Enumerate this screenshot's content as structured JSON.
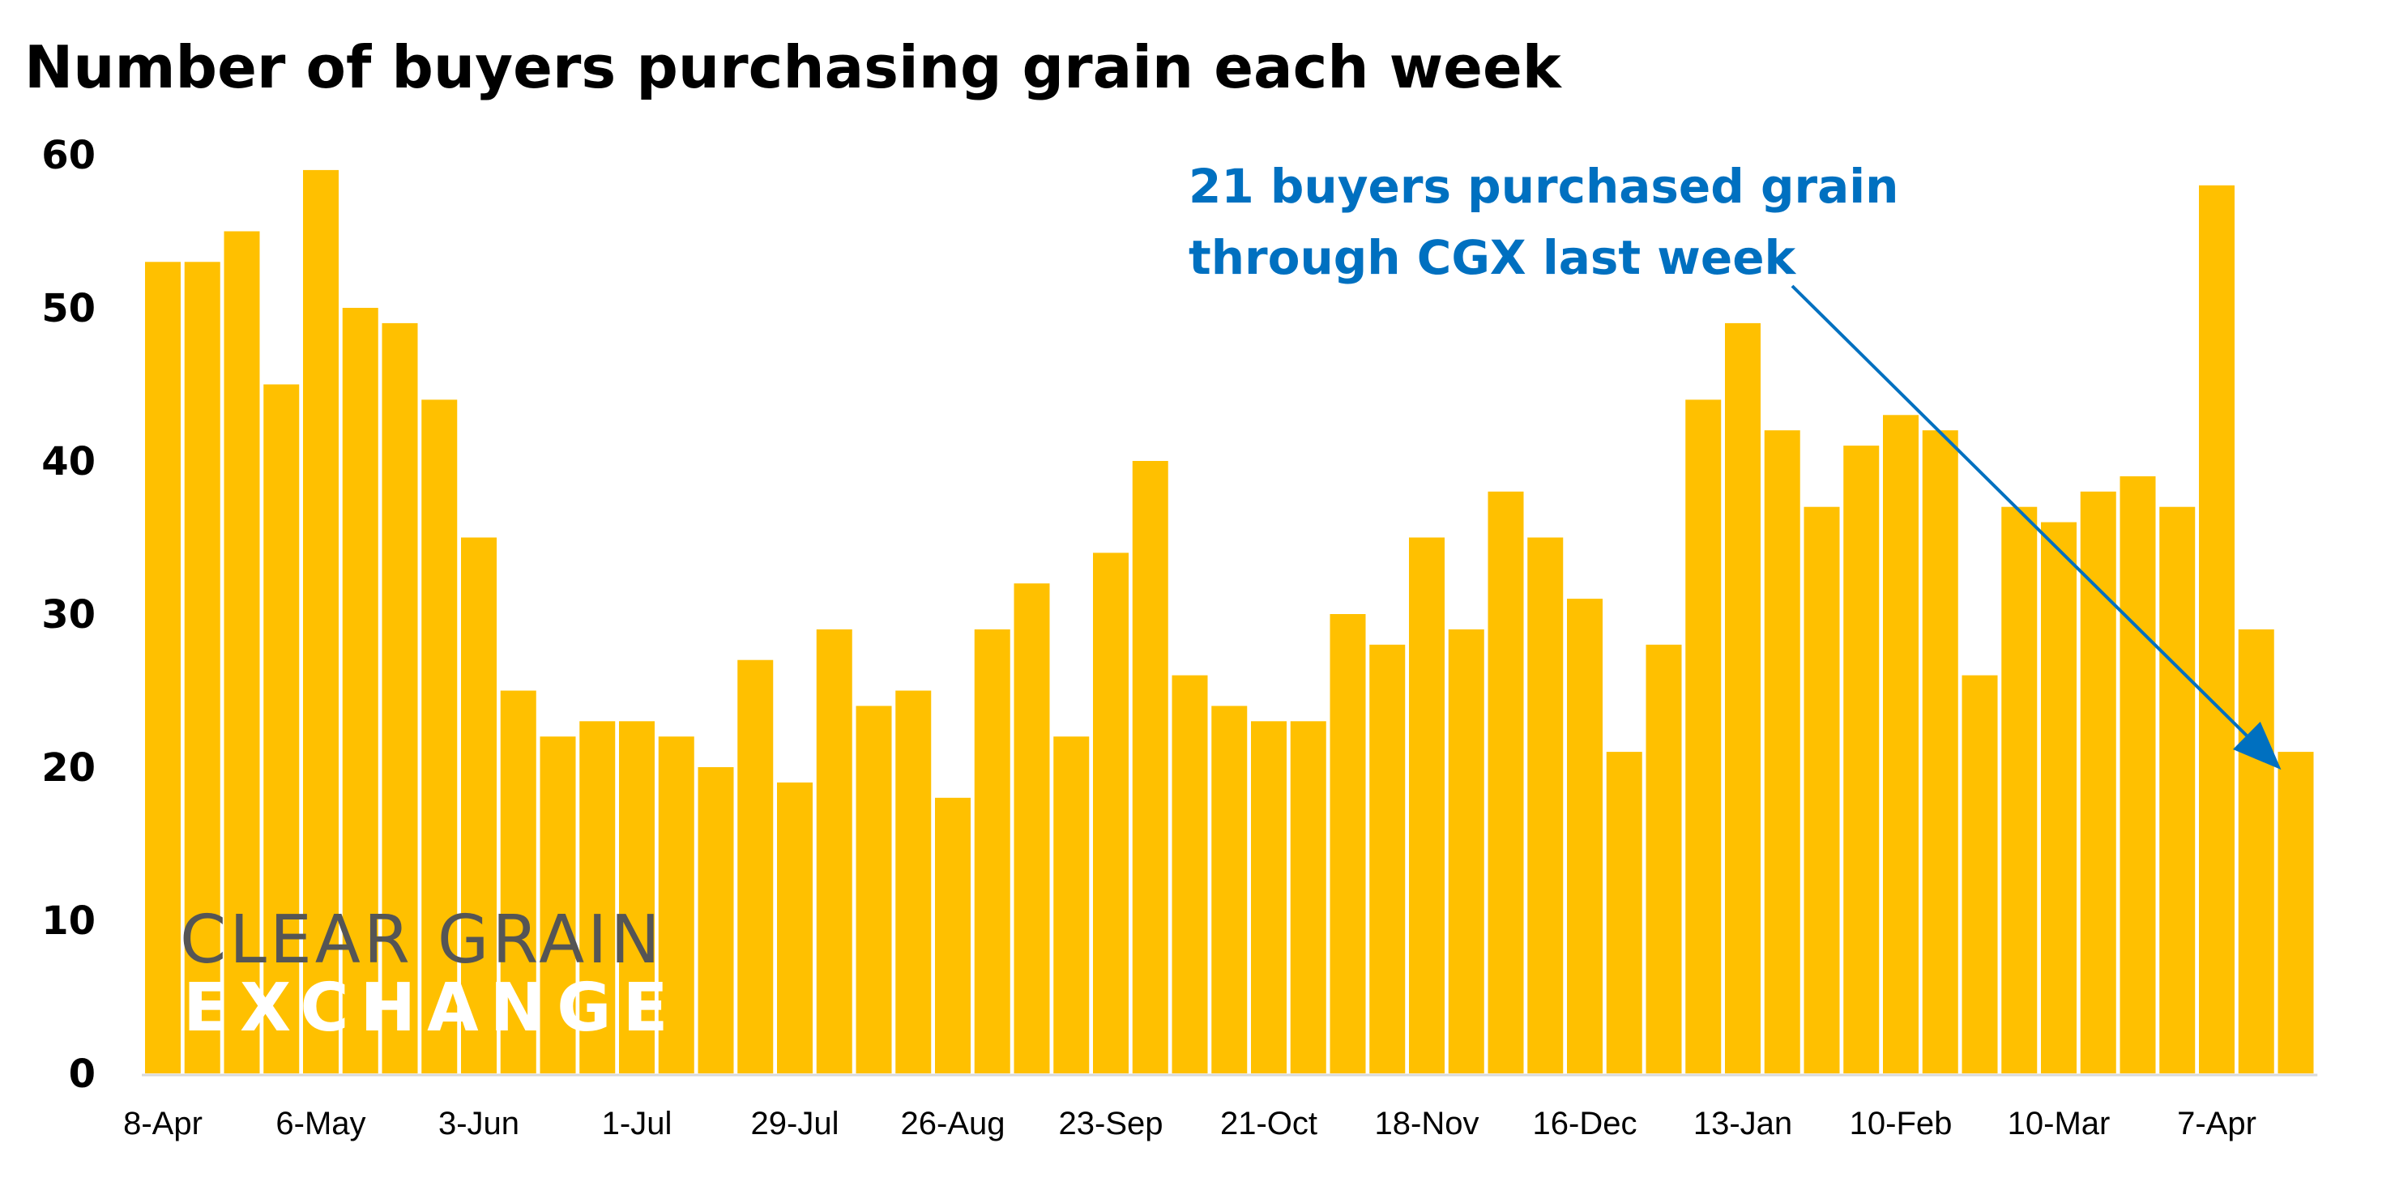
{
  "chart_data": {
    "type": "bar",
    "title": "Number of buyers purchasing grain each week",
    "xlabel": "",
    "ylabel": "",
    "ylim": [
      0,
      60
    ],
    "yticks": [
      0,
      10,
      20,
      30,
      40,
      50,
      60
    ],
    "grid": false,
    "tick_labels": [
      "8-Apr",
      "6-May",
      "3-Jun",
      "1-Jul",
      "29-Jul",
      "26-Aug",
      "23-Sep",
      "21-Oct",
      "18-Nov",
      "16-Dec",
      "13-Jan",
      "10-Feb",
      "10-Mar",
      "7-Apr"
    ],
    "tick_every_weeks": 4,
    "values": [
      53,
      53,
      55,
      45,
      59,
      50,
      49,
      44,
      35,
      25,
      22,
      23,
      23,
      22,
      20,
      27,
      19,
      29,
      24,
      25,
      18,
      29,
      32,
      22,
      34,
      40,
      26,
      24,
      23,
      23,
      30,
      28,
      35,
      29,
      38,
      35,
      31,
      21,
      28,
      44,
      49,
      42,
      37,
      41,
      43,
      42,
      26,
      37,
      36,
      38,
      39,
      37,
      58,
      29,
      21
    ],
    "bar_color": "#FFC000",
    "annotation": {
      "lines": [
        "21 buyers purchased grain",
        "through CGX last week"
      ],
      "color": "#0070C0",
      "points_to_bar": "last"
    }
  },
  "logo": {
    "line1": "CLEAR GRAIN",
    "line2": "EXCHANGE",
    "line1_color": "#555555",
    "line2_color": "#FFFFFF"
  }
}
